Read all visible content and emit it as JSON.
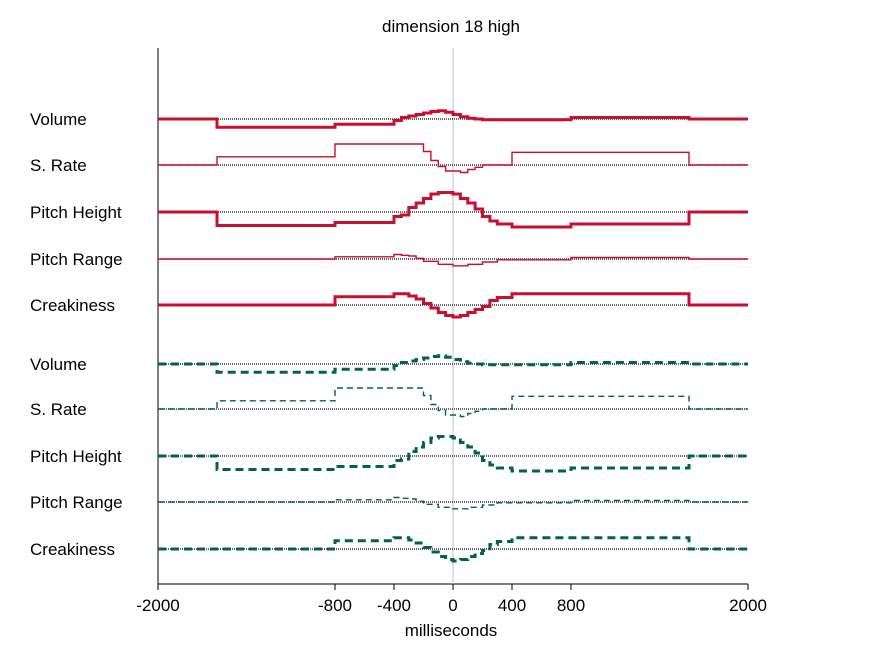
{
  "chart_data": {
    "type": "line",
    "title": "dimension 18 high",
    "xlabel": "milliseconds",
    "ylabel": "",
    "xlim": [
      -2000,
      2000
    ],
    "x_ticks": [
      -2000,
      -800,
      -400,
      0,
      400,
      800,
      2000
    ],
    "x_tick_labels": [
      "-2000",
      "-800",
      "-400",
      "0",
      "400",
      "800",
      "2000"
    ],
    "zero_line": true,
    "colors": {
      "upper": "#c8102e",
      "lower": "#00634a",
      "baseline": "#333333",
      "zero": "#c0c0c0"
    },
    "groups": [
      {
        "line_style": "solid",
        "color": "#c8102e",
        "series": [
          {
            "name": "Volume",
            "weight": "thick",
            "x": [
              -2000,
              -1600,
              -800,
              -400,
              -350,
              -300,
              -250,
              -200,
              -150,
              -100,
              -50,
              0,
              50,
              100,
              150,
              200,
              250,
              300,
              800,
              1600,
              2000
            ],
            "y": [
              0,
              -0.55,
              -0.35,
              -0.1,
              0.1,
              0.2,
              0.3,
              0.4,
              0.5,
              0.55,
              0.45,
              0.3,
              0.15,
              0.05,
              0,
              -0.05,
              -0.05,
              -0.05,
              0.1,
              0,
              0
            ]
          },
          {
            "name": "S. Rate",
            "weight": "thin",
            "x": [
              -2000,
              -1600,
              -800,
              -200,
              -150,
              -100,
              -50,
              0,
              50,
              100,
              150,
              200,
              250,
              300,
              400,
              1600,
              2000
            ],
            "y": [
              0,
              0.55,
              1.4,
              0.9,
              0.3,
              -0.1,
              -0.4,
              -0.4,
              -0.5,
              -0.3,
              -0.15,
              0,
              0,
              0,
              0.85,
              0,
              0
            ]
          },
          {
            "name": "Pitch Height",
            "weight": "thick",
            "x": [
              -2000,
              -1600,
              -800,
              -400,
              -350,
              -300,
              -250,
              -200,
              -150,
              -100,
              -50,
              0,
              50,
              100,
              150,
              200,
              250,
              300,
              400,
              800,
              1600,
              2000
            ],
            "y": [
              0,
              -0.9,
              -0.7,
              -0.3,
              -0.2,
              0.3,
              0.6,
              0.9,
              1.2,
              1.3,
              1.3,
              1.2,
              0.9,
              0.6,
              0.2,
              -0.3,
              -0.6,
              -0.8,
              -1.0,
              -0.8,
              0,
              0
            ]
          },
          {
            "name": "Pitch Range",
            "weight": "thin",
            "x": [
              -2000,
              -800,
              -400,
              -350,
              -300,
              -250,
              -200,
              -100,
              0,
              100,
              200,
              300,
              800,
              1600,
              2000
            ],
            "y": [
              0,
              0.15,
              0.3,
              0.25,
              0.2,
              0.05,
              -0.15,
              -0.35,
              -0.45,
              -0.35,
              -0.2,
              -0.05,
              0.1,
              0,
              0
            ]
          },
          {
            "name": "Creakiness",
            "weight": "thick",
            "x": [
              -2000,
              -800,
              -400,
              -300,
              -250,
              -200,
              -150,
              -100,
              -50,
              0,
              50,
              100,
              150,
              200,
              250,
              300,
              400,
              1600,
              2000
            ],
            "y": [
              0,
              0.55,
              0.75,
              0.6,
              0.4,
              0.1,
              -0.2,
              -0.5,
              -0.7,
              -0.8,
              -0.7,
              -0.5,
              -0.3,
              -0.1,
              0.3,
              0.5,
              0.75,
              0,
              0
            ]
          }
        ]
      },
      {
        "line_style": "dashed",
        "color": "#00634a",
        "series": [
          {
            "name": "Volume",
            "weight": "thick",
            "x": [
              -2000,
              -1600,
              -800,
              -400,
              -350,
              -300,
              -250,
              -200,
              -150,
              -100,
              -50,
              0,
              50,
              100,
              150,
              200,
              250,
              300,
              800,
              1600,
              2000
            ],
            "y": [
              0,
              -0.55,
              -0.35,
              -0.1,
              0.1,
              0.2,
              0.3,
              0.4,
              0.5,
              0.55,
              0.45,
              0.3,
              0.15,
              0.05,
              0,
              -0.05,
              -0.05,
              -0.05,
              0.1,
              0,
              0
            ]
          },
          {
            "name": "S. Rate",
            "weight": "thin",
            "x": [
              -2000,
              -1600,
              -800,
              -200,
              -150,
              -100,
              -50,
              0,
              50,
              100,
              150,
              200,
              250,
              300,
              400,
              1600,
              2000
            ],
            "y": [
              0,
              0.55,
              1.4,
              0.9,
              0.3,
              -0.1,
              -0.4,
              -0.4,
              -0.5,
              -0.3,
              -0.15,
              0,
              0,
              0,
              0.85,
              0,
              0
            ]
          },
          {
            "name": "Pitch Height",
            "weight": "thick",
            "x": [
              -2000,
              -1600,
              -800,
              -400,
              -350,
              -300,
              -250,
              -200,
              -150,
              -100,
              -50,
              0,
              50,
              100,
              150,
              200,
              250,
              300,
              400,
              800,
              1600,
              2000
            ],
            "y": [
              0,
              -0.9,
              -0.7,
              -0.3,
              -0.2,
              0.3,
              0.6,
              0.9,
              1.2,
              1.3,
              1.3,
              1.2,
              0.9,
              0.6,
              0.2,
              -0.3,
              -0.6,
              -0.8,
              -1.0,
              -0.8,
              0,
              0
            ]
          },
          {
            "name": "Pitch Range",
            "weight": "thin",
            "x": [
              -2000,
              -800,
              -400,
              -350,
              -300,
              -250,
              -200,
              -100,
              0,
              100,
              200,
              300,
              800,
              1600,
              2000
            ],
            "y": [
              0,
              0.15,
              0.3,
              0.25,
              0.2,
              0.05,
              -0.15,
              -0.35,
              -0.45,
              -0.35,
              -0.2,
              -0.05,
              0.1,
              0,
              0
            ]
          },
          {
            "name": "Creakiness",
            "weight": "thick",
            "x": [
              -2000,
              -800,
              -400,
              -300,
              -250,
              -200,
              -150,
              -100,
              -50,
              0,
              50,
              100,
              150,
              200,
              250,
              300,
              400,
              1600,
              2000
            ],
            "y": [
              0,
              0.55,
              0.75,
              0.6,
              0.4,
              0.1,
              -0.2,
              -0.5,
              -0.7,
              -0.8,
              -0.7,
              -0.5,
              -0.3,
              -0.1,
              0.3,
              0.5,
              0.75,
              0,
              0
            ]
          }
        ]
      }
    ]
  }
}
